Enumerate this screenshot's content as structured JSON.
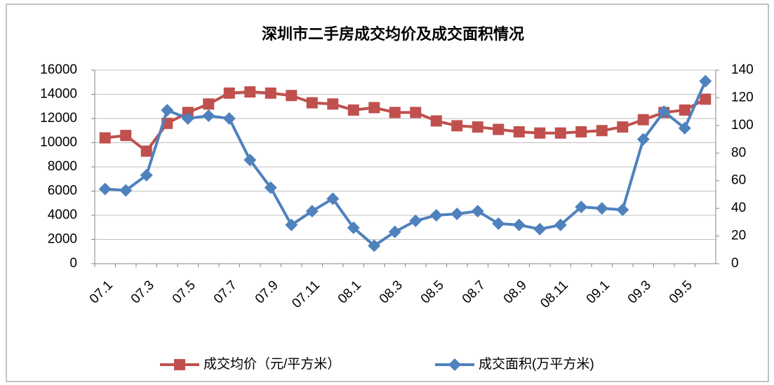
{
  "chart_data": {
    "type": "line",
    "title": "深圳市二手房成交均价及成交面积情况",
    "categories": [
      "07.1",
      null,
      "07.3",
      null,
      "07.5",
      null,
      "07.7",
      null,
      "07.9",
      null,
      "07.11",
      null,
      "08.1",
      null,
      "08.3",
      null,
      "08.5",
      null,
      "08.7",
      null,
      "08.9",
      null,
      "08.11",
      null,
      "09.1",
      null,
      "09.3",
      null,
      "09.5",
      null
    ],
    "series": [
      {
        "name": "成交均价（元/平方米）",
        "color": "#c0504d",
        "marker": "square",
        "values": [
          10400,
          10600,
          9300,
          11600,
          12500,
          13200,
          14100,
          14200,
          14100,
          13900,
          13300,
          13200,
          12700,
          12900,
          12500,
          12500,
          11800,
          11400,
          11300,
          11100,
          10900,
          10800,
          10800,
          10900,
          11000,
          11300,
          11900,
          12500,
          12700,
          13600
        ]
      },
      {
        "name": "成交面积(万平方米)",
        "color": "#4f81bd",
        "marker": "diamond",
        "axis": "y2",
        "values": [
          54,
          53,
          64,
          111,
          105,
          107,
          105,
          75,
          55,
          28,
          38,
          47,
          26,
          13,
          23,
          31,
          35,
          36,
          38,
          29,
          28,
          25,
          28,
          41,
          40,
          39,
          90,
          110,
          98,
          132
        ]
      }
    ],
    "ylim": [
      0,
      16000
    ],
    "yticks": [
      0,
      2000,
      4000,
      6000,
      8000,
      10000,
      12000,
      14000,
      16000
    ],
    "y2lim": [
      0,
      140
    ],
    "y2ticks": [
      0,
      20,
      40,
      60,
      80,
      100,
      120,
      140
    ],
    "grid": true,
    "legend": "bottom"
  }
}
